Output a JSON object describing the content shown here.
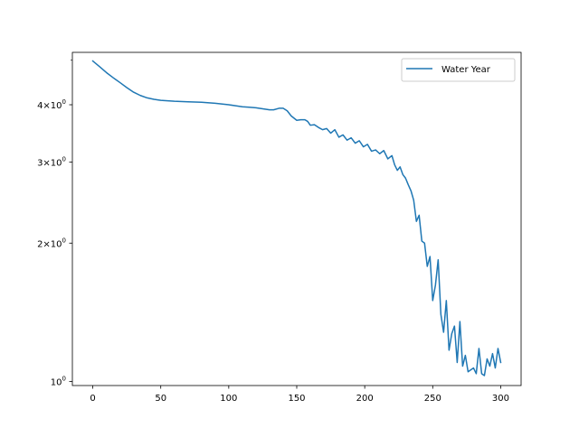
{
  "chart_data": {
    "type": "line",
    "title": "",
    "xlabel": "",
    "ylabel": "",
    "y_scale": "log",
    "xlim": [
      -15,
      315
    ],
    "ylim": [
      0.98,
      5.2
    ],
    "x_ticks": [
      0,
      50,
      100,
      150,
      200,
      250,
      300
    ],
    "x_tick_labels": [
      "0",
      "50",
      "100",
      "150",
      "200",
      "250",
      "300"
    ],
    "y_major_ticks": [
      1,
      2,
      3,
      4
    ],
    "y_major_labels": [
      {
        "base": "10",
        "exp": "0",
        "prefix": ""
      },
      {
        "base": "10",
        "exp": "0",
        "prefix": "2×"
      },
      {
        "base": "10",
        "exp": "0",
        "prefix": "3×"
      },
      {
        "base": "10",
        "exp": "0",
        "prefix": "4×"
      }
    ],
    "y_minor_ticks": [
      5
    ],
    "legend": {
      "position": "upper right",
      "entries": [
        "Water Year"
      ]
    },
    "colors": {
      "series": "#1f77b4",
      "axes": "#000000",
      "legend_border": "#cccccc"
    },
    "series": [
      {
        "name": "Water Year",
        "x": [
          0,
          5,
          10,
          15,
          20,
          25,
          30,
          35,
          40,
          45,
          50,
          55,
          60,
          70,
          80,
          90,
          100,
          105,
          110,
          115,
          120,
          125,
          130,
          133,
          137,
          140,
          143,
          146,
          150,
          153,
          156,
          158,
          160,
          163,
          166,
          169,
          172,
          175,
          178,
          181,
          184,
          187,
          190,
          193,
          196,
          199,
          202,
          205,
          208,
          211,
          214,
          217,
          220,
          222,
          224,
          226,
          228,
          230,
          232,
          234,
          236,
          238,
          240,
          242,
          244,
          246,
          248,
          250,
          252,
          254,
          256,
          258,
          260,
          262,
          264,
          266,
          268,
          270,
          272,
          274,
          276,
          278,
          280,
          282,
          284,
          286,
          288,
          290,
          292,
          294,
          296,
          298,
          300
        ],
        "y": [
          4.98,
          4.84,
          4.7,
          4.58,
          4.47,
          4.36,
          4.26,
          4.19,
          4.14,
          4.11,
          4.09,
          4.08,
          4.07,
          4.06,
          4.05,
          4.03,
          4.0,
          3.98,
          3.96,
          3.95,
          3.94,
          3.92,
          3.9,
          3.9,
          3.93,
          3.93,
          3.88,
          3.78,
          3.7,
          3.71,
          3.71,
          3.68,
          3.61,
          3.62,
          3.57,
          3.53,
          3.55,
          3.47,
          3.53,
          3.4,
          3.44,
          3.35,
          3.39,
          3.3,
          3.34,
          3.24,
          3.28,
          3.17,
          3.19,
          3.13,
          3.18,
          3.05,
          3.1,
          2.96,
          2.88,
          2.93,
          2.82,
          2.77,
          2.68,
          2.6,
          2.48,
          2.23,
          2.3,
          2.02,
          2.0,
          1.78,
          1.87,
          1.5,
          1.62,
          1.84,
          1.4,
          1.28,
          1.5,
          1.17,
          1.27,
          1.32,
          1.1,
          1.35,
          1.08,
          1.14,
          1.05,
          1.06,
          1.07,
          1.04,
          1.18,
          1.04,
          1.03,
          1.12,
          1.08,
          1.15,
          1.07,
          1.18,
          1.1
        ]
      }
    ]
  }
}
